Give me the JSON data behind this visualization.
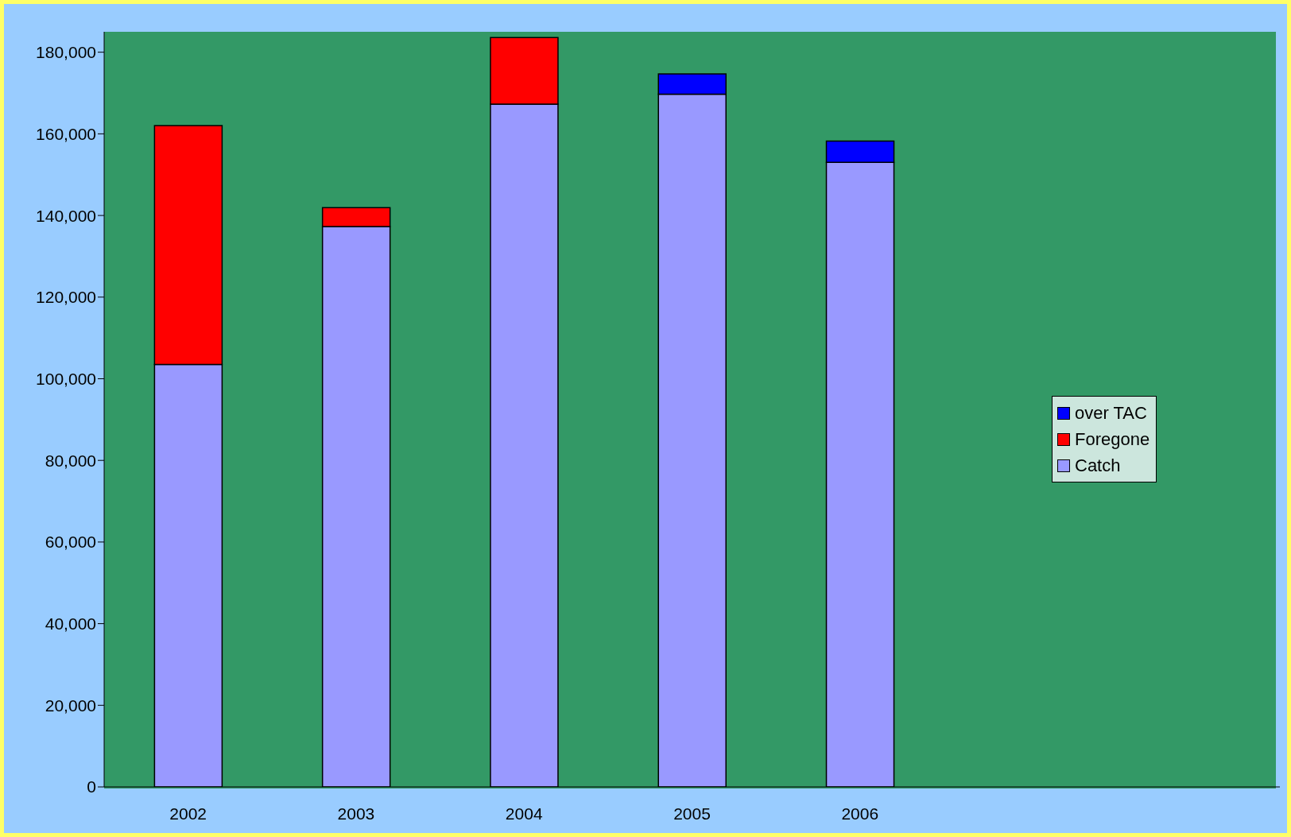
{
  "chart_data": {
    "type": "bar",
    "stacked": true,
    "categories": [
      "2002",
      "2003",
      "2004",
      "2005",
      "2006",
      null,
      null
    ],
    "series": [
      {
        "name": "Catch",
        "color": "#9999ff",
        "values": [
          103500,
          137300,
          167300,
          169700,
          153000,
          null,
          null
        ]
      },
      {
        "name": "Foregone",
        "color": "#ff0000",
        "values": [
          58500,
          4600,
          16300,
          null,
          null,
          null,
          null
        ]
      },
      {
        "name": "over TAC",
        "color": "#0000ff",
        "values": [
          null,
          null,
          null,
          5000,
          5200,
          null,
          null
        ]
      }
    ],
    "ylim": [
      0,
      185000
    ],
    "yticks": [
      0,
      {
        "value": 20000,
        "label": "20,000"
      },
      {
        "value": 40000,
        "label": "40,000"
      },
      {
        "value": 60000,
        "label": "60,000"
      },
      {
        "value": 80000,
        "label": "80,000"
      },
      {
        "value": 100000,
        "label": "100,000"
      },
      {
        "value": 120000,
        "label": "120,000"
      },
      {
        "value": 140000,
        "label": "140,000"
      },
      {
        "value": 160000,
        "label": "160,000"
      },
      {
        "value": 180000,
        "label": "180,000"
      }
    ],
    "grid": false,
    "legend": "right"
  }
}
